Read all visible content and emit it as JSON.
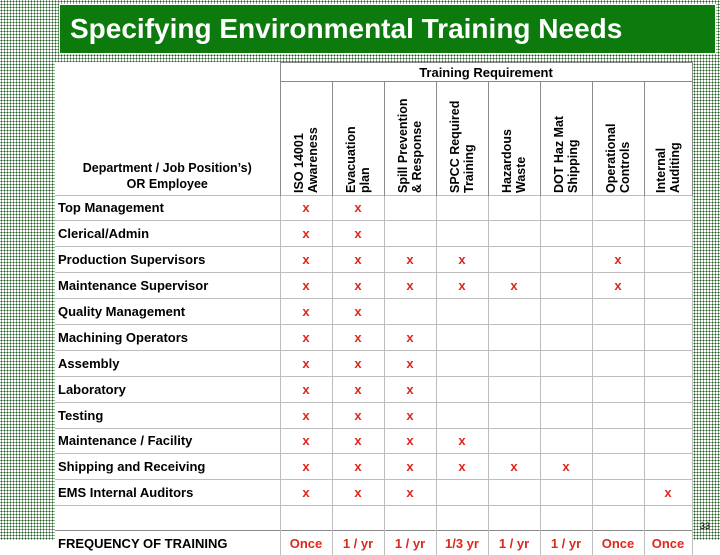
{
  "slide": {
    "title": "Specifying Environmental Training Needs",
    "page_number": "33"
  },
  "table": {
    "group_header": "Training Requirement",
    "row_header": "Department / Job Position’s)\nOR Employee",
    "columns": [
      "ISO 14001\nAwareness",
      "Evacuation\nplan",
      "Spill Prevention\n& Response",
      "SPCC Required\nTraining",
      "Hazardous\nWaste",
      "DOT Haz Mat\nShipping",
      "Operational\nControls",
      "Internal\nAuditing"
    ],
    "rows": [
      {
        "label": "Top Management",
        "marks": [
          "x",
          "x",
          "",
          "",
          "",
          "",
          "",
          ""
        ]
      },
      {
        "label": "Clerical/Admin",
        "marks": [
          "x",
          "x",
          "",
          "",
          "",
          "",
          "",
          ""
        ]
      },
      {
        "label": "Production Supervisors",
        "marks": [
          "x",
          "x",
          "x",
          "x",
          "",
          "",
          "x",
          ""
        ]
      },
      {
        "label": "Maintenance Supervisor",
        "marks": [
          "x",
          "x",
          "x",
          "x",
          "x",
          "",
          "x",
          ""
        ]
      },
      {
        "label": "Quality Management",
        "marks": [
          "x",
          "x",
          "",
          "",
          "",
          "",
          "",
          ""
        ]
      },
      {
        "label": "Machining Operators",
        "marks": [
          "x",
          "x",
          "x",
          "",
          "",
          "",
          "",
          ""
        ]
      },
      {
        "label": "Assembly",
        "marks": [
          "x",
          "x",
          "x",
          "",
          "",
          "",
          "",
          ""
        ]
      },
      {
        "label": "Laboratory",
        "marks": [
          "x",
          "x",
          "x",
          "",
          "",
          "",
          "",
          ""
        ]
      },
      {
        "label": "Testing",
        "marks": [
          "x",
          "x",
          "x",
          "",
          "",
          "",
          "",
          ""
        ]
      },
      {
        "label": "Maintenance / Facility",
        "marks": [
          "x",
          "x",
          "x",
          "x",
          "",
          "",
          "",
          ""
        ]
      },
      {
        "label": "Shipping and Receiving",
        "marks": [
          "x",
          "x",
          "x",
          "x",
          "x",
          "x",
          "",
          ""
        ]
      },
      {
        "label": "EMS Internal Auditors",
        "marks": [
          "x",
          "x",
          "x",
          "",
          "",
          "",
          "",
          "x"
        ]
      }
    ],
    "frequency_label": "FREQUENCY OF TRAINING",
    "frequency": [
      "Once",
      "1 / yr",
      "1 / yr",
      "1/3 yr",
      "1 / yr",
      "1 / yr",
      "Once",
      "Once"
    ]
  },
  "colors": {
    "title_bg": "#0c7a0c",
    "mark_red": "#e1261c"
  }
}
